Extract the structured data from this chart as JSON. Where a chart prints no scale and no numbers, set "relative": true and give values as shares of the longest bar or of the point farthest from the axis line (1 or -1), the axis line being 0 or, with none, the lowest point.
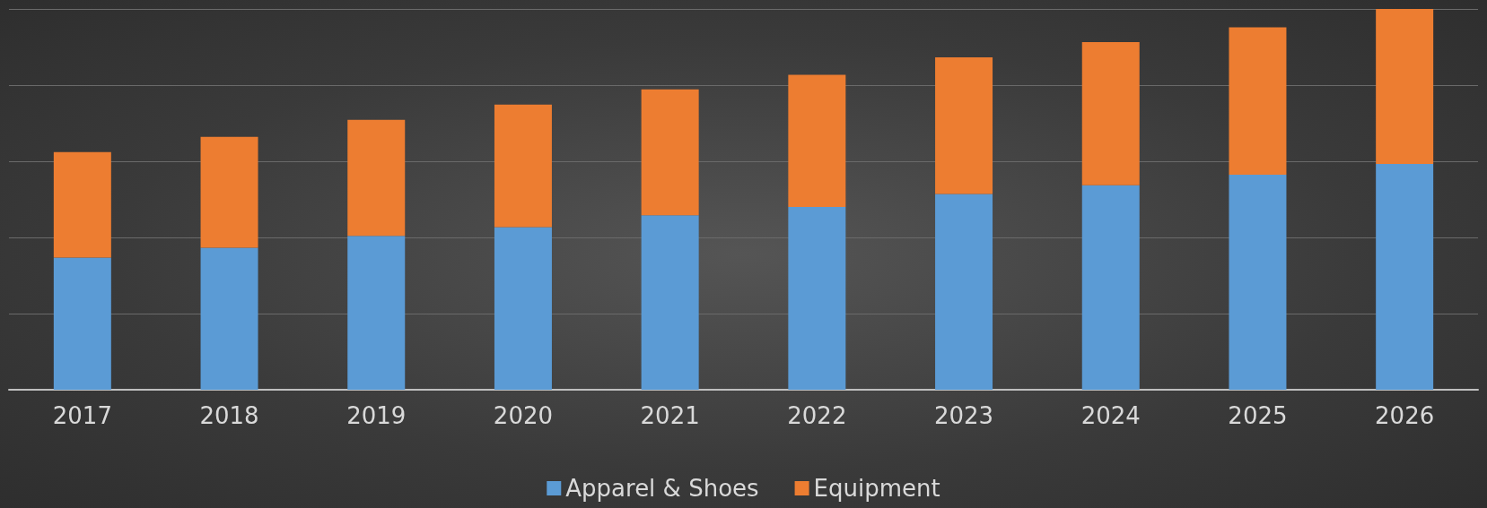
{
  "chart_data": {
    "type": "bar",
    "stacked": true,
    "relative": true,
    "grid": "y",
    "legend": "bottom",
    "categories": [
      "2017",
      "2018",
      "2019",
      "2020",
      "2021",
      "2022",
      "2023",
      "2024",
      "2025",
      "2026"
    ],
    "series": [
      {
        "name": "Apparel & Shoes",
        "color": "#5b9bd5",
        "values": [
          0.347,
          0.373,
          0.404,
          0.427,
          0.458,
          0.48,
          0.514,
          0.537,
          0.565,
          0.593
        ]
      },
      {
        "name": "Equipment",
        "color": "#ed7d31",
        "values": [
          0.277,
          0.291,
          0.305,
          0.322,
          0.331,
          0.347,
          0.359,
          0.376,
          0.387,
          0.407
        ]
      }
    ]
  }
}
